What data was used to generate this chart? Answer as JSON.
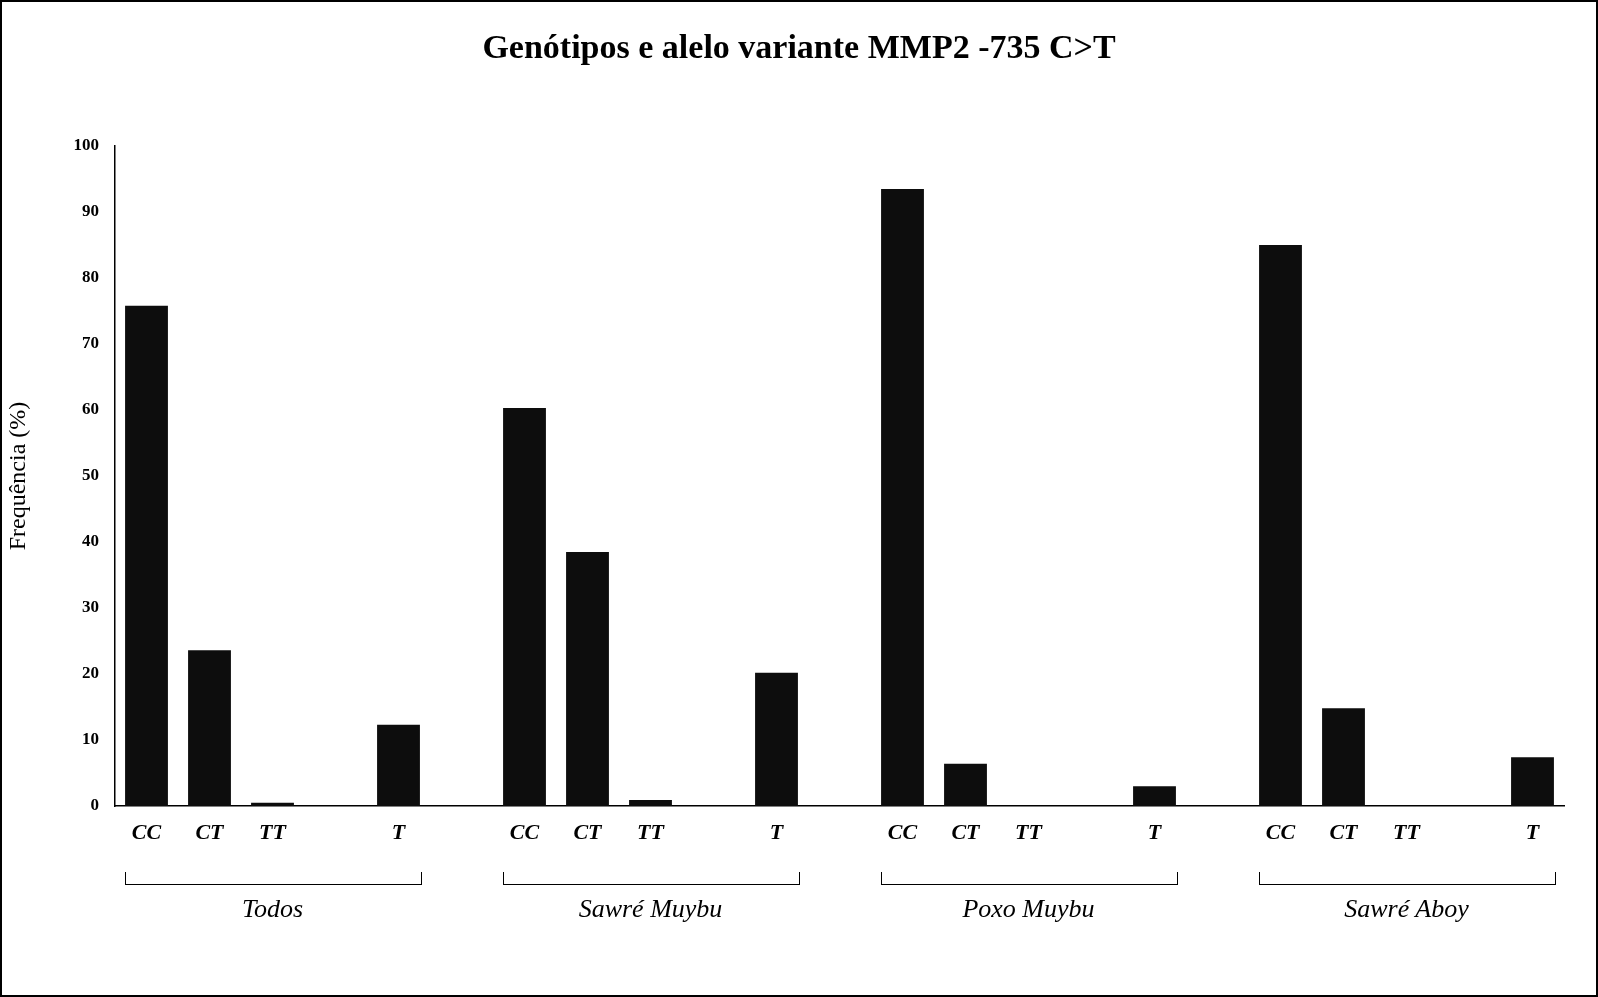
{
  "chart_data": {
    "type": "bar",
    "title": "Genótipos e alelo variante MMP2 -735 C>T",
    "ylabel": "Frequência (%)",
    "categories": [
      "CC",
      "CT",
      "TT",
      null,
      "T",
      null,
      "CC",
      "CT",
      "TT",
      null,
      "T",
      null,
      "CC",
      "CT",
      "TT",
      null,
      "T",
      null,
      "CC",
      "CT",
      "TT",
      null,
      "T"
    ],
    "values": [
      75.8,
      23.6,
      0.5,
      null,
      12.3,
      null,
      60.3,
      38.5,
      0.9,
      null,
      20.2,
      null,
      93.5,
      6.4,
      0,
      null,
      3.0,
      null,
      85.0,
      14.8,
      0,
      null,
      7.4
    ],
    "color": "#0d0d0d",
    "ylim": [
      0,
      100
    ],
    "yticks": [
      0,
      10,
      20,
      30,
      40,
      50,
      60,
      70,
      80,
      90,
      100
    ],
    "grid": false,
    "legend": false,
    "annotations": [
      "Todos",
      "Sawré Muybu",
      "Poxo Muybu",
      "Sawré Aboy"
    ]
  }
}
